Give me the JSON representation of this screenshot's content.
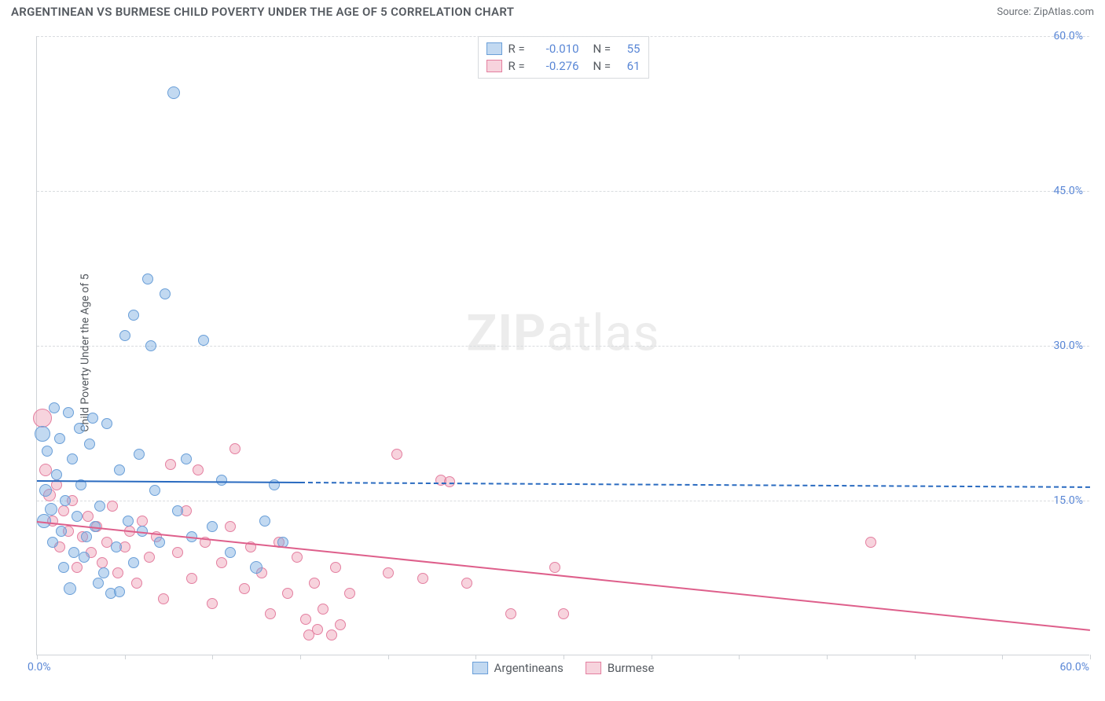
{
  "header": {
    "title": "ARGENTINEAN VS BURMESE CHILD POVERTY UNDER THE AGE OF 5 CORRELATION CHART",
    "source": "Source: ZipAtlas.com"
  },
  "ylabel": "Child Poverty Under the Age of 5",
  "watermark_a": "ZIP",
  "watermark_b": "atlas",
  "chart": {
    "type": "scatter",
    "xlim": [
      0,
      60
    ],
    "ylim": [
      0,
      60
    ],
    "y_ticks": [
      15,
      30,
      45,
      60
    ],
    "y_tick_labels": [
      "15.0%",
      "30.0%",
      "45.0%",
      "60.0%"
    ],
    "x_axis_left_label": "0.0%",
    "x_axis_right_label": "60.0%",
    "x_tick_positions": [
      0,
      5,
      10,
      15,
      20,
      25,
      30,
      35,
      40,
      45,
      50,
      55,
      60
    ],
    "background_color": "#ffffff",
    "grid_color": "#d9dcdf",
    "axis_color": "#cfd3d7",
    "tick_label_color": "#5a87d6",
    "point_base_radius": 7
  },
  "series": {
    "argentineans": {
      "label": "Argentineans",
      "fill": "rgba(120,170,225,0.45)",
      "stroke": "#6a9fd8",
      "trend_color": "#2a6bc0",
      "r_value": "-0.010",
      "n_value": "55",
      "trend": {
        "x1": 0,
        "y1": 17.0,
        "x2": 15,
        "y2": 16.85,
        "x2_ext": 60,
        "y2_ext": 16.4
      },
      "points": [
        {
          "x": 0.3,
          "y": 21.5,
          "r": 10
        },
        {
          "x": 0.4,
          "y": 13.0,
          "r": 9
        },
        {
          "x": 0.5,
          "y": 16.0,
          "r": 8
        },
        {
          "x": 0.6,
          "y": 19.8,
          "r": 7
        },
        {
          "x": 0.8,
          "y": 14.2,
          "r": 8
        },
        {
          "x": 0.9,
          "y": 11.0,
          "r": 7
        },
        {
          "x": 1.0,
          "y": 24.0,
          "r": 7
        },
        {
          "x": 1.1,
          "y": 17.5,
          "r": 7
        },
        {
          "x": 1.3,
          "y": 21.0,
          "r": 7
        },
        {
          "x": 1.4,
          "y": 12.0,
          "r": 7
        },
        {
          "x": 1.5,
          "y": 8.5,
          "r": 7
        },
        {
          "x": 1.6,
          "y": 15.0,
          "r": 7
        },
        {
          "x": 1.8,
          "y": 23.5,
          "r": 7
        },
        {
          "x": 1.9,
          "y": 6.5,
          "r": 8
        },
        {
          "x": 2.0,
          "y": 19.0,
          "r": 7
        },
        {
          "x": 2.1,
          "y": 10.0,
          "r": 7
        },
        {
          "x": 2.3,
          "y": 13.5,
          "r": 7
        },
        {
          "x": 2.4,
          "y": 22.0,
          "r": 7
        },
        {
          "x": 2.5,
          "y": 16.5,
          "r": 7
        },
        {
          "x": 2.7,
          "y": 9.5,
          "r": 7
        },
        {
          "x": 2.8,
          "y": 11.5,
          "r": 7
        },
        {
          "x": 3.0,
          "y": 20.5,
          "r": 7
        },
        {
          "x": 3.2,
          "y": 23.0,
          "r": 7
        },
        {
          "x": 3.3,
          "y": 12.5,
          "r": 7
        },
        {
          "x": 3.5,
          "y": 7.0,
          "r": 7
        },
        {
          "x": 3.6,
          "y": 14.5,
          "r": 7
        },
        {
          "x": 3.8,
          "y": 8.0,
          "r": 7
        },
        {
          "x": 4.0,
          "y": 22.5,
          "r": 7
        },
        {
          "x": 4.2,
          "y": 6.0,
          "r": 7
        },
        {
          "x": 4.5,
          "y": 10.5,
          "r": 7
        },
        {
          "x": 4.7,
          "y": 18.0,
          "r": 7
        },
        {
          "x": 4.7,
          "y": 6.2,
          "r": 7
        },
        {
          "x": 5.0,
          "y": 31.0,
          "r": 7
        },
        {
          "x": 5.2,
          "y": 13.0,
          "r": 7
        },
        {
          "x": 5.5,
          "y": 33.0,
          "r": 7
        },
        {
          "x": 5.5,
          "y": 9.0,
          "r": 7
        },
        {
          "x": 5.8,
          "y": 19.5,
          "r": 7
        },
        {
          "x": 6.0,
          "y": 12.0,
          "r": 7
        },
        {
          "x": 6.3,
          "y": 36.5,
          "r": 7
        },
        {
          "x": 6.5,
          "y": 30.0,
          "r": 7
        },
        {
          "x": 6.7,
          "y": 16.0,
          "r": 7
        },
        {
          "x": 7.0,
          "y": 11.0,
          "r": 7
        },
        {
          "x": 7.3,
          "y": 35.0,
          "r": 7
        },
        {
          "x": 7.8,
          "y": 54.5,
          "r": 8
        },
        {
          "x": 8.0,
          "y": 14.0,
          "r": 7
        },
        {
          "x": 8.5,
          "y": 19.0,
          "r": 7
        },
        {
          "x": 8.8,
          "y": 11.5,
          "r": 7
        },
        {
          "x": 9.5,
          "y": 30.5,
          "r": 7
        },
        {
          "x": 10.0,
          "y": 12.5,
          "r": 7
        },
        {
          "x": 10.5,
          "y": 17.0,
          "r": 7
        },
        {
          "x": 11.0,
          "y": 10.0,
          "r": 7
        },
        {
          "x": 12.5,
          "y": 8.5,
          "r": 8
        },
        {
          "x": 13.0,
          "y": 13.0,
          "r": 7
        },
        {
          "x": 13.5,
          "y": 16.5,
          "r": 7
        },
        {
          "x": 14.0,
          "y": 11.0,
          "r": 7
        }
      ]
    },
    "burmese": {
      "label": "Burmese",
      "fill": "rgba(235,145,170,0.40)",
      "stroke": "#e47fa0",
      "trend_color": "#de5f8b",
      "r_value": "-0.276",
      "n_value": "61",
      "trend": {
        "x1": 0,
        "y1": 13.0,
        "x2": 60,
        "y2": 2.5
      },
      "points": [
        {
          "x": 0.3,
          "y": 23.0,
          "r": 12
        },
        {
          "x": 0.5,
          "y": 18.0,
          "r": 8
        },
        {
          "x": 0.7,
          "y": 15.5,
          "r": 8
        },
        {
          "x": 0.9,
          "y": 13.0,
          "r": 7
        },
        {
          "x": 1.1,
          "y": 16.5,
          "r": 7
        },
        {
          "x": 1.3,
          "y": 10.5,
          "r": 7
        },
        {
          "x": 1.5,
          "y": 14.0,
          "r": 7
        },
        {
          "x": 1.8,
          "y": 12.0,
          "r": 7
        },
        {
          "x": 2.0,
          "y": 15.0,
          "r": 7
        },
        {
          "x": 2.3,
          "y": 8.5,
          "r": 7
        },
        {
          "x": 2.6,
          "y": 11.5,
          "r": 7
        },
        {
          "x": 2.9,
          "y": 13.5,
          "r": 7
        },
        {
          "x": 3.1,
          "y": 10.0,
          "r": 7
        },
        {
          "x": 3.4,
          "y": 12.5,
          "r": 7
        },
        {
          "x": 3.7,
          "y": 9.0,
          "r": 7
        },
        {
          "x": 4.0,
          "y": 11.0,
          "r": 7
        },
        {
          "x": 4.3,
          "y": 14.5,
          "r": 7
        },
        {
          "x": 4.6,
          "y": 8.0,
          "r": 7
        },
        {
          "x": 5.0,
          "y": 10.5,
          "r": 7
        },
        {
          "x": 5.3,
          "y": 12.0,
          "r": 7
        },
        {
          "x": 5.7,
          "y": 7.0,
          "r": 7
        },
        {
          "x": 6.0,
          "y": 13.0,
          "r": 7
        },
        {
          "x": 6.4,
          "y": 9.5,
          "r": 7
        },
        {
          "x": 6.8,
          "y": 11.5,
          "r": 7
        },
        {
          "x": 7.2,
          "y": 5.5,
          "r": 7
        },
        {
          "x": 7.6,
          "y": 18.5,
          "r": 7
        },
        {
          "x": 8.0,
          "y": 10.0,
          "r": 7
        },
        {
          "x": 8.5,
          "y": 14.0,
          "r": 7
        },
        {
          "x": 8.8,
          "y": 7.5,
          "r": 7
        },
        {
          "x": 9.2,
          "y": 18.0,
          "r": 7
        },
        {
          "x": 9.6,
          "y": 11.0,
          "r": 7
        },
        {
          "x": 10.0,
          "y": 5.0,
          "r": 7
        },
        {
          "x": 10.5,
          "y": 9.0,
          "r": 7
        },
        {
          "x": 11.0,
          "y": 12.5,
          "r": 7
        },
        {
          "x": 11.3,
          "y": 20.0,
          "r": 7
        },
        {
          "x": 11.8,
          "y": 6.5,
          "r": 7
        },
        {
          "x": 12.2,
          "y": 10.5,
          "r": 7
        },
        {
          "x": 12.8,
          "y": 8.0,
          "r": 7
        },
        {
          "x": 13.3,
          "y": 4.0,
          "r": 7
        },
        {
          "x": 13.8,
          "y": 11.0,
          "r": 7
        },
        {
          "x": 14.3,
          "y": 6.0,
          "r": 7
        },
        {
          "x": 14.8,
          "y": 9.5,
          "r": 7
        },
        {
          "x": 15.3,
          "y": 3.5,
          "r": 7
        },
        {
          "x": 15.5,
          "y": 2.0,
          "r": 7
        },
        {
          "x": 15.8,
          "y": 7.0,
          "r": 7
        },
        {
          "x": 16.0,
          "y": 2.5,
          "r": 7
        },
        {
          "x": 16.3,
          "y": 4.5,
          "r": 7
        },
        {
          "x": 16.8,
          "y": 2.0,
          "r": 7
        },
        {
          "x": 17.0,
          "y": 8.5,
          "r": 7
        },
        {
          "x": 17.3,
          "y": 3.0,
          "r": 7
        },
        {
          "x": 17.8,
          "y": 6.0,
          "r": 7
        },
        {
          "x": 20.0,
          "y": 8.0,
          "r": 7
        },
        {
          "x": 20.5,
          "y": 19.5,
          "r": 7
        },
        {
          "x": 22.0,
          "y": 7.5,
          "r": 7
        },
        {
          "x": 23.0,
          "y": 17.0,
          "r": 7
        },
        {
          "x": 23.5,
          "y": 16.8,
          "r": 7
        },
        {
          "x": 27.0,
          "y": 4.0,
          "r": 7
        },
        {
          "x": 29.5,
          "y": 8.5,
          "r": 7
        },
        {
          "x": 30.0,
          "y": 4.0,
          "r": 7
        },
        {
          "x": 47.5,
          "y": 11.0,
          "r": 7
        },
        {
          "x": 24.5,
          "y": 7.0,
          "r": 7
        }
      ]
    }
  },
  "legend_top": {
    "r_label": "R =",
    "n_label": "N ="
  },
  "legend_bottom": {
    "items": [
      "argentineans",
      "burmese"
    ]
  }
}
